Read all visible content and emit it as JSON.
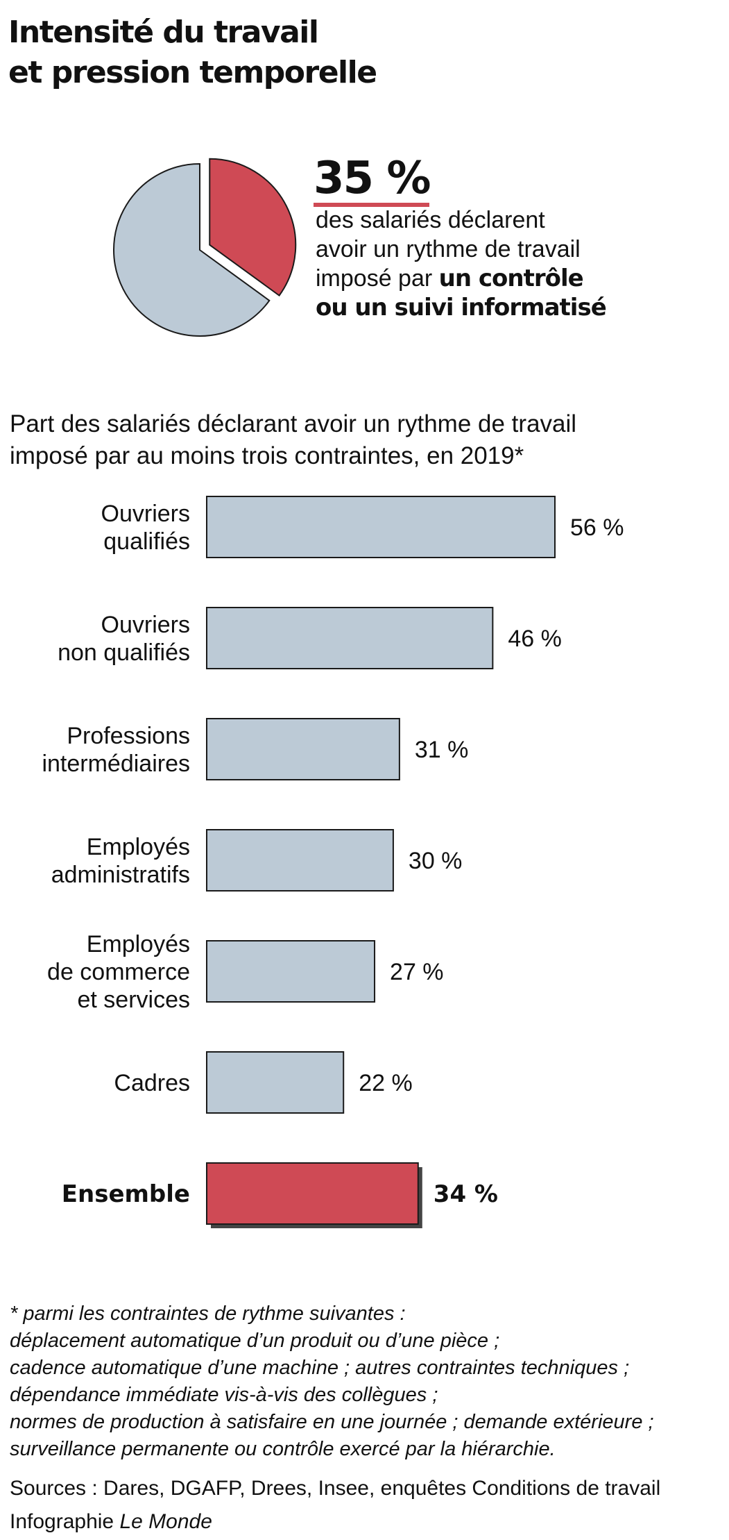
{
  "title_lines": [
    "Intensité du travail",
    "et pression temporelle"
  ],
  "kpi": {
    "value": "35 %",
    "text_line1": "des salariés déclarent",
    "text_line2": "avoir un rythme de travail",
    "text_line3_plain": "imposé par ",
    "text_line3_bold": "un contrôle",
    "text_line4_bold": "ou un suivi informatisé"
  },
  "pie": {
    "highlight_share": 0.35,
    "colors": {
      "highlight": "#cf4a55",
      "rest": "#bccad6",
      "stroke": "#1a1a1a"
    }
  },
  "subtitle_lines": [
    "Part des salariés déclarant avoir un rythme de travail",
    "imposé par au moins trois contraintes, en 2019*"
  ],
  "chart_data": {
    "type": "bar",
    "orientation": "horizontal",
    "categories": [
      [
        "Ouvriers",
        "qualifiés"
      ],
      [
        "Ouvriers",
        "non qualifiés"
      ],
      [
        "Professions",
        "intermédiaires"
      ],
      [
        "Employés",
        "administratifs"
      ],
      [
        "Employés",
        "de commerce",
        "et services"
      ],
      [
        "Cadres"
      ],
      [
        "Ensemble"
      ]
    ],
    "values": [
      56,
      46,
      31,
      30,
      27,
      22,
      34
    ],
    "value_labels": [
      "56 %",
      "46 %",
      "31 %",
      "30 %",
      "27 %",
      "22 %",
      "34 %"
    ],
    "highlight_index": 6,
    "unit": "%",
    "xlim": [
      0,
      56
    ],
    "grid": false,
    "colors": {
      "bar": "#bccad6",
      "highlight": "#cf4a55",
      "stroke": "#1a1a1a",
      "shadow": "#444444"
    }
  },
  "footnote_lines": [
    "* parmi les contraintes de rythme suivantes :",
    "déplacement automatique d’un produit ou d’une pièce ;",
    "cadence automatique d’une machine ; autres contraintes techniques ;",
    "dépendance immédiate vis-à-vis des collègues ;",
    "normes de production à satisfaire en une journée ; demande extérieure ;",
    "surveillance permanente ou contrôle exercé par la hiérarchie."
  ],
  "sources": "Sources : Dares, DGAFP, Drees, Insee, enquêtes Conditions de travail",
  "credit_prefix": "Infographie ",
  "credit_brand": "Le Monde"
}
